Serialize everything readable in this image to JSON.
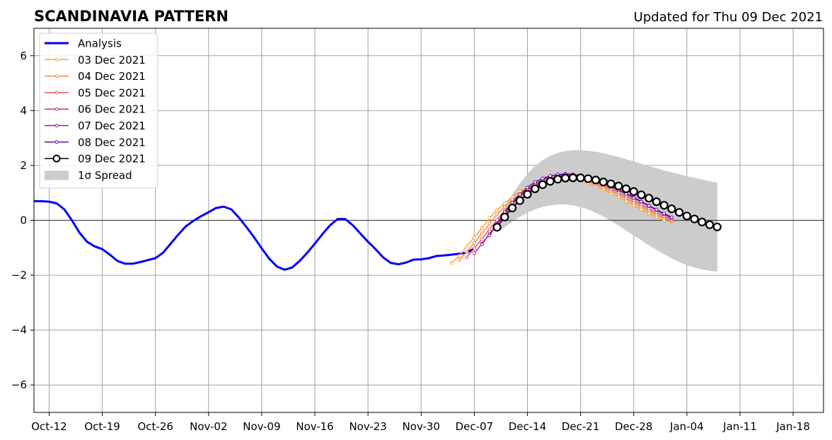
{
  "title": "SCANDINAVIA PATTERN",
  "updated": "Updated for Thu 09 Dec 2021",
  "chart_data": {
    "type": "line",
    "title": "SCANDINAVIA PATTERN",
    "xlabel": "",
    "ylabel": "",
    "xlim": [
      "2021-10-10",
      "2022-01-22"
    ],
    "ylim": [
      -7,
      7
    ],
    "grid": true,
    "legend_position": "top-left",
    "x_ticks": [
      "Oct-12",
      "Oct-19",
      "Oct-26",
      "Nov-02",
      "Nov-09",
      "Nov-16",
      "Nov-23",
      "Nov-30",
      "Dec-07",
      "Dec-14",
      "Dec-21",
      "Dec-28",
      "Jan-04",
      "Jan-11",
      "Jan-18"
    ],
    "y_ticks": [
      "6",
      "4",
      "2",
      "0",
      "−2",
      "−4",
      "−6"
    ],
    "analysis": {
      "name": "Analysis",
      "color": "#0000ff",
      "start": "2021-10-10",
      "values": [
        0.7,
        0.7,
        0.68,
        0.62,
        0.4,
        0.0,
        -0.45,
        -0.78,
        -0.95,
        -1.05,
        -1.25,
        -1.48,
        -1.58,
        -1.58,
        -1.52,
        -1.45,
        -1.38,
        -1.18,
        -0.85,
        -0.52,
        -0.22,
        -0.02,
        0.15,
        0.3,
        0.45,
        0.5,
        0.4,
        0.1,
        -0.25,
        -0.62,
        -1.02,
        -1.4,
        -1.68,
        -1.8,
        -1.72,
        -1.48,
        -1.18,
        -0.85,
        -0.5,
        -0.18,
        0.05,
        0.05,
        -0.18,
        -0.48,
        -0.78,
        -1.05,
        -1.35,
        -1.55,
        -1.6,
        -1.54,
        -1.43,
        -1.42,
        -1.38,
        -1.3,
        -1.28,
        -1.25,
        -1.22,
        -1.18,
        -1.02
      ]
    },
    "forecasts": [
      {
        "name": "03 Dec 2021",
        "color": "#ffa726",
        "start": "2021-12-04",
        "values": [
          -1.55,
          -1.3,
          -0.95,
          -0.62,
          -0.28,
          0.08,
          0.38,
          0.62,
          0.85,
          1.05,
          1.2,
          1.35,
          1.45,
          1.52,
          1.55,
          1.55,
          1.5,
          1.45,
          1.35,
          1.25,
          1.12,
          0.98,
          0.85,
          0.7,
          0.55,
          0.4,
          0.25,
          0.12,
          0.0,
          -0.05
        ]
      },
      {
        "name": "04 Dec 2021",
        "color": "#f7814f",
        "start": "2021-12-05",
        "values": [
          -1.45,
          -1.15,
          -0.82,
          -0.48,
          -0.12,
          0.22,
          0.5,
          0.75,
          0.95,
          1.15,
          1.3,
          1.42,
          1.52,
          1.57,
          1.58,
          1.55,
          1.5,
          1.42,
          1.32,
          1.2,
          1.08,
          0.95,
          0.8,
          0.65,
          0.5,
          0.35,
          0.2,
          0.08,
          -0.02
        ]
      },
      {
        "name": "05 Dec 2021",
        "color": "#e25767",
        "start": "2021-12-06",
        "values": [
          -1.35,
          -1.02,
          -0.68,
          -0.32,
          0.02,
          0.35,
          0.62,
          0.88,
          1.08,
          1.28,
          1.42,
          1.53,
          1.6,
          1.62,
          1.6,
          1.55,
          1.48,
          1.38,
          1.27,
          1.15,
          1.02,
          0.88,
          0.73,
          0.58,
          0.42,
          0.28,
          0.14,
          0.02
        ]
      },
      {
        "name": "06 Dec 2021",
        "color": "#c2307d",
        "start": "2021-12-07",
        "values": [
          -1.2,
          -0.85,
          -0.5,
          -0.15,
          0.18,
          0.48,
          0.76,
          1.0,
          1.22,
          1.4,
          1.53,
          1.62,
          1.67,
          1.67,
          1.63,
          1.57,
          1.48,
          1.38,
          1.26,
          1.13,
          0.99,
          0.84,
          0.69,
          0.54,
          0.39,
          0.24,
          0.1
        ]
      },
      {
        "name": "07 Dec 2021",
        "color": "#a01aa0",
        "start": "2021-12-08",
        "values": [
          -0.88,
          -0.5,
          -0.12,
          0.25,
          0.58,
          0.88,
          1.12,
          1.32,
          1.48,
          1.6,
          1.67,
          1.7,
          1.68,
          1.63,
          1.56,
          1.47,
          1.36,
          1.24,
          1.11,
          0.97,
          0.82,
          0.67,
          0.52,
          0.37,
          0.22,
          0.08
        ]
      },
      {
        "name": "08 Dec 2021",
        "color": "#6a0fa8",
        "start": "2021-12-09",
        "values": [
          -0.55,
          -0.12,
          0.3,
          0.65,
          0.95,
          1.2,
          1.4,
          1.53,
          1.62,
          1.67,
          1.68,
          1.65,
          1.6,
          1.53,
          1.44,
          1.34,
          1.22,
          1.1,
          0.96,
          0.82,
          0.68,
          0.53,
          0.39,
          0.25,
          0.11
        ]
      }
    ],
    "current": {
      "name": "09 Dec 2021",
      "color": "#000000",
      "start": "2021-12-10",
      "values": [
        -0.25,
        0.12,
        0.45,
        0.72,
        0.95,
        1.15,
        1.3,
        1.42,
        1.5,
        1.54,
        1.55,
        1.55,
        1.52,
        1.47,
        1.4,
        1.33,
        1.25,
        1.15,
        1.05,
        0.93,
        0.81,
        0.68,
        0.55,
        0.42,
        0.29,
        0.16,
        0.05,
        -0.06,
        -0.16,
        -0.24
      ]
    },
    "spread": {
      "name": "1σ Spread",
      "color": "#cccccc",
      "start": "2021-12-10",
      "upper": [
        -0.05,
        0.45,
        0.95,
        1.35,
        1.7,
        1.98,
        2.2,
        2.35,
        2.46,
        2.53,
        2.56,
        2.56,
        2.54,
        2.5,
        2.45,
        2.38,
        2.31,
        2.23,
        2.15,
        2.07,
        1.98,
        1.9,
        1.82,
        1.75,
        1.68,
        1.61,
        1.55,
        1.49,
        1.43,
        1.37
      ],
      "lower": [
        -0.45,
        -0.25,
        -0.05,
        0.13,
        0.28,
        0.4,
        0.49,
        0.55,
        0.58,
        0.58,
        0.55,
        0.49,
        0.4,
        0.28,
        0.14,
        -0.02,
        -0.19,
        -0.37,
        -0.55,
        -0.73,
        -0.91,
        -1.08,
        -1.24,
        -1.39,
        -1.52,
        -1.63,
        -1.72,
        -1.79,
        -1.84,
        -1.87
      ]
    }
  }
}
